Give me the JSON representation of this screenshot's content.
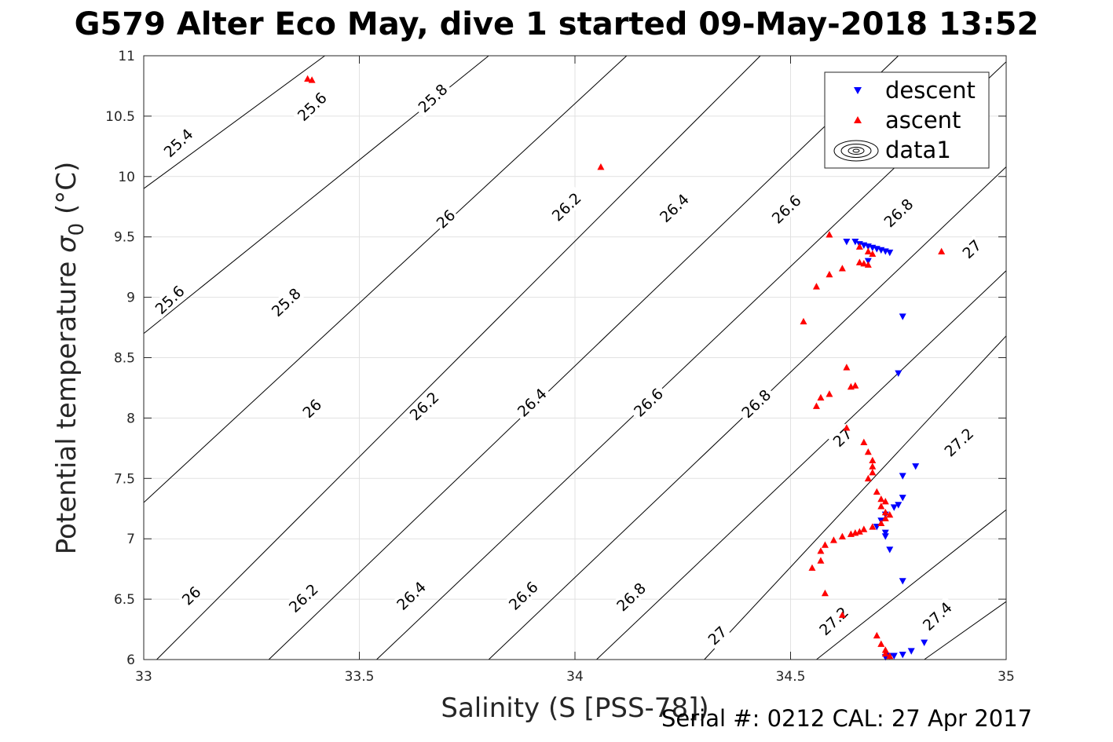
{
  "title": "G579 Alter Eco May, dive 1 started 09-May-2018 13:52",
  "footer": "Serial #: 0212  CAL: 27 Apr 2017",
  "chart_data": {
    "type": "scatter",
    "xlabel": "Salinity (S [PSS-78])",
    "ylabel_main": "Potential temperature ",
    "ylabel_sigma": "σ",
    "ylabel_sub": "0",
    "ylabel_unit": " (°C)",
    "xlim": [
      33,
      35
    ],
    "ylim": [
      6,
      11
    ],
    "xticks": [
      33,
      33.5,
      34,
      34.5,
      35
    ],
    "xtick_labels": [
      "33",
      "33.5",
      "34",
      "34.5",
      "35"
    ],
    "yticks": [
      6,
      6.5,
      7,
      7.5,
      8,
      8.5,
      9,
      9.5,
      10,
      10.5,
      11
    ],
    "ytick_labels": [
      "6",
      "6.5",
      "7",
      "7.5",
      "8",
      "8.5",
      "9",
      "9.5",
      "10",
      "10.5",
      "11"
    ],
    "grid": true,
    "legend_position": "top-right",
    "series": [
      {
        "name": "descent",
        "marker": "triangle-down",
        "color": "#0000ff",
        "points": [
          [
            34.63,
            9.46
          ],
          [
            34.65,
            9.46
          ],
          [
            34.66,
            9.44
          ],
          [
            34.67,
            9.43
          ],
          [
            34.68,
            9.42
          ],
          [
            34.69,
            9.41
          ],
          [
            34.7,
            9.4
          ],
          [
            34.71,
            9.39
          ],
          [
            34.72,
            9.38
          ],
          [
            34.73,
            9.37
          ],
          [
            34.68,
            9.3
          ],
          [
            34.76,
            8.84
          ],
          [
            34.75,
            8.37
          ],
          [
            34.76,
            7.52
          ],
          [
            34.79,
            7.6
          ],
          [
            34.76,
            7.34
          ],
          [
            34.74,
            7.26
          ],
          [
            34.75,
            7.28
          ],
          [
            34.72,
            7.2
          ],
          [
            34.71,
            7.15
          ],
          [
            34.7,
            7.1
          ],
          [
            34.72,
            7.05
          ],
          [
            34.72,
            7.02
          ],
          [
            34.73,
            6.91
          ],
          [
            34.76,
            6.65
          ],
          [
            34.81,
            6.14
          ],
          [
            34.78,
            6.07
          ],
          [
            34.76,
            6.04
          ],
          [
            34.74,
            6.03
          ],
          [
            34.73,
            6.03
          ],
          [
            34.72,
            6.02
          ]
        ]
      },
      {
        "name": "ascent",
        "marker": "triangle-up",
        "color": "#ff0000",
        "points": [
          [
            33.38,
            10.81
          ],
          [
            33.39,
            10.8
          ],
          [
            34.06,
            10.08
          ],
          [
            34.59,
            9.52
          ],
          [
            34.66,
            9.42
          ],
          [
            34.68,
            9.38
          ],
          [
            34.69,
            9.36
          ],
          [
            34.66,
            9.29
          ],
          [
            34.67,
            9.28
          ],
          [
            34.68,
            9.27
          ],
          [
            34.62,
            9.24
          ],
          [
            34.59,
            9.19
          ],
          [
            34.56,
            9.09
          ],
          [
            34.85,
            9.38
          ],
          [
            34.53,
            8.8
          ],
          [
            34.63,
            8.42
          ],
          [
            34.64,
            8.26
          ],
          [
            34.65,
            8.27
          ],
          [
            34.59,
            8.2
          ],
          [
            34.57,
            8.17
          ],
          [
            34.56,
            8.1
          ],
          [
            34.63,
            7.92
          ],
          [
            34.67,
            7.8
          ],
          [
            34.68,
            7.72
          ],
          [
            34.69,
            7.65
          ],
          [
            34.69,
            7.6
          ],
          [
            34.69,
            7.55
          ],
          [
            34.68,
            7.5
          ],
          [
            34.7,
            7.39
          ],
          [
            34.71,
            7.33
          ],
          [
            34.72,
            7.31
          ],
          [
            34.71,
            7.27
          ],
          [
            34.72,
            7.22
          ],
          [
            34.73,
            7.2
          ],
          [
            34.72,
            7.17
          ],
          [
            34.71,
            7.13
          ],
          [
            34.69,
            7.1
          ],
          [
            34.67,
            7.08
          ],
          [
            34.66,
            7.06
          ],
          [
            34.65,
            7.05
          ],
          [
            34.64,
            7.04
          ],
          [
            34.62,
            7.02
          ],
          [
            34.6,
            6.99
          ],
          [
            34.58,
            6.95
          ],
          [
            34.57,
            6.9
          ],
          [
            34.57,
            6.82
          ],
          [
            34.55,
            6.76
          ],
          [
            34.58,
            6.55
          ],
          [
            34.62,
            6.37
          ],
          [
            34.7,
            6.2
          ],
          [
            34.71,
            6.13
          ],
          [
            34.72,
            6.08
          ],
          [
            34.72,
            6.05
          ],
          [
            34.73,
            6.03
          ]
        ]
      },
      {
        "name": "data1",
        "marker": "contour",
        "color": "#000000",
        "points": []
      }
    ],
    "contour_levels": [
      25.4,
      25.6,
      25.8,
      26,
      26.2,
      26.4,
      26.6,
      26.8,
      27,
      27.2,
      27.4
    ],
    "contour_lines": [
      {
        "level": 25.4,
        "points": [
          [
            33,
            9.9
          ],
          [
            33.42,
            11
          ]
        ]
      },
      {
        "level": 25.6,
        "points": [
          [
            33,
            8.7
          ],
          [
            33.8,
            11
          ]
        ]
      },
      {
        "level": 25.8,
        "points": [
          [
            33,
            7.3
          ],
          [
            34.12,
            11
          ]
        ]
      },
      {
        "level": 26,
        "points": [
          [
            33.03,
            6
          ],
          [
            34.43,
            11
          ]
        ]
      },
      {
        "level": 26.2,
        "points": [
          [
            33.29,
            6
          ],
          [
            34.75,
            11
          ]
        ]
      },
      {
        "level": 26.4,
        "points": [
          [
            33.54,
            6
          ],
          [
            35,
            10.95
          ]
        ]
      },
      {
        "level": 26.6,
        "points": [
          [
            33.8,
            6
          ],
          [
            35,
            10.08
          ]
        ]
      },
      {
        "level": 26.8,
        "points": [
          [
            34.05,
            6
          ],
          [
            35,
            9.22
          ]
        ]
      },
      {
        "level": 27,
        "points": [
          [
            34.3,
            6
          ],
          [
            35,
            8.68
          ]
        ]
      },
      {
        "level": 27.2,
        "points": [
          [
            34.56,
            6
          ],
          [
            35,
            7.24
          ]
        ]
      },
      {
        "level": 27.4,
        "points": [
          [
            34.81,
            6
          ],
          [
            35,
            6.48
          ]
        ]
      }
    ],
    "contour_labels": [
      {
        "text": "25.4",
        "at": [
          33.08,
          10.28
        ]
      },
      {
        "text": "25.6",
        "at": [
          33.39,
          10.58
        ]
      },
      {
        "text": "25.8",
        "at": [
          33.67,
          10.65
        ]
      },
      {
        "text": "25.6",
        "at": [
          33.06,
          8.98
        ]
      },
      {
        "text": "25.8",
        "at": [
          33.33,
          8.96
        ]
      },
      {
        "text": "26",
        "at": [
          33.7,
          9.65
        ]
      },
      {
        "text": "26.2",
        "at": [
          33.98,
          9.75
        ]
      },
      {
        "text": "26.4",
        "at": [
          34.23,
          9.74
        ]
      },
      {
        "text": "26.6",
        "at": [
          34.49,
          9.73
        ]
      },
      {
        "text": "26.8",
        "at": [
          34.75,
          9.7
        ]
      },
      {
        "text": "27",
        "at": [
          34.92,
          9.4
        ]
      },
      {
        "text": "26",
        "at": [
          33.39,
          8.08
        ]
      },
      {
        "text": "26.2",
        "at": [
          33.65,
          8.1
        ]
      },
      {
        "text": "26.4",
        "at": [
          33.9,
          8.13
        ]
      },
      {
        "text": "26.6",
        "at": [
          34.17,
          8.13
        ]
      },
      {
        "text": "26.8",
        "at": [
          34.42,
          8.12
        ]
      },
      {
        "text": "27",
        "at": [
          34.62,
          7.84
        ]
      },
      {
        "text": "27.2",
        "at": [
          34.89,
          7.8
        ]
      },
      {
        "text": "26",
        "at": [
          33.11,
          6.53
        ]
      },
      {
        "text": "26.2",
        "at": [
          33.37,
          6.51
        ]
      },
      {
        "text": "26.4",
        "at": [
          33.62,
          6.53
        ]
      },
      {
        "text": "26.6",
        "at": [
          33.88,
          6.53
        ]
      },
      {
        "text": "26.8",
        "at": [
          34.13,
          6.52
        ]
      },
      {
        "text": "27",
        "at": [
          34.33,
          6.2
        ]
      },
      {
        "text": "27.2",
        "at": [
          34.6,
          6.32
        ]
      },
      {
        "text": "27.4",
        "at": [
          34.84,
          6.36
        ]
      }
    ]
  }
}
